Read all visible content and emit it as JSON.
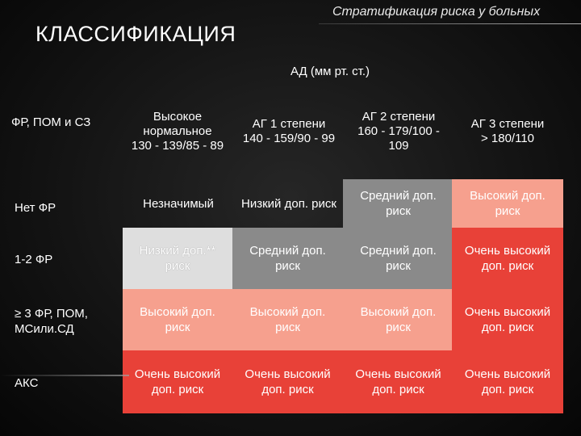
{
  "header": {
    "top_title": "Стратификация риска у больных",
    "main_title": "КЛАССИФИКАЦИЯ",
    "bp_label": "АД (мм рт. ст.)"
  },
  "table": {
    "corner_label": "ФР, ПОМ и СЗ",
    "columns": [
      "Высокое\nнормальное\n130 - 139/85 - 89",
      "АГ 1 степени\n140 - 159/90 - 99",
      "АГ 2 степени\n160 - 179/100 -\n109",
      "АГ 3 степени\n> 180/110"
    ],
    "rows": [
      {
        "label": "Нет ФР",
        "cells": [
          "Незначимый",
          "Низкий доп. риск",
          "Средний доп.\nриск",
          "Высокий доп.\nриск"
        ],
        "colors": [
          "#000000",
          "#000000",
          "#8a8a8a",
          "#f6a08e"
        ]
      },
      {
        "label": "1-2 ФР",
        "cells": [
          "Низкий доп.**\nриск",
          "Средний доп.\nриск",
          "Средний доп.\nриск",
          "Очень высокий\nдоп. риск"
        ],
        "colors": [
          "#dedede",
          "#8a8a8a",
          "#8a8a8a",
          "#e84138"
        ]
      },
      {
        "label": "≥ 3 ФР, ПОМ,\nМСили.СД",
        "cells": [
          "Высокий доп.\nриск",
          "Высокий доп.\nриск",
          "Высокий доп.\nриск",
          "Очень высокий\nдоп. риск"
        ],
        "colors": [
          "#f6a08e",
          "#f6a08e",
          "#f6a08e",
          "#e84138"
        ]
      },
      {
        "label": "АКС",
        "cells": [
          "Очень высокий\nдоп. риск",
          "Очень высокий\nдоп. риск",
          "Очень высокий\nдоп. риск",
          "Очень высокий\nдоп. риск"
        ],
        "colors": [
          "#e84138",
          "#e84138",
          "#e84138",
          "#e84138"
        ]
      }
    ]
  }
}
